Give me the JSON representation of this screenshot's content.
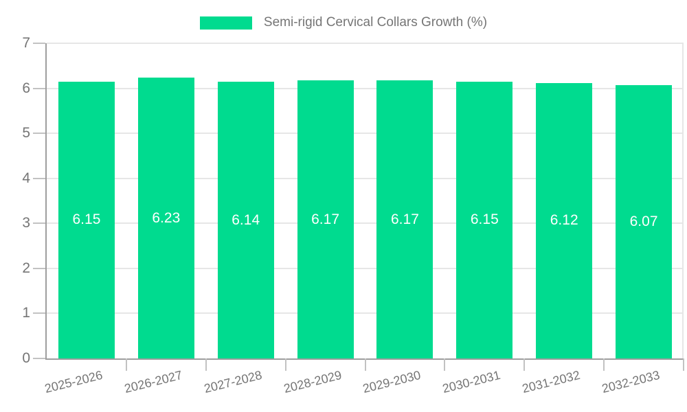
{
  "chart_data": {
    "type": "bar",
    "title": "Semi-rigid Cervical Collars Growth (%)",
    "categories": [
      "2025-2026",
      "2026-2027",
      "2027-2028",
      "2028-2029",
      "2029-2030",
      "2030-2031",
      "2031-2032",
      "2032-2033"
    ],
    "values": [
      6.15,
      6.23,
      6.14,
      6.17,
      6.17,
      6.15,
      6.12,
      6.07
    ],
    "value_labels": [
      "6.15",
      "6.23",
      "6.14",
      "6.17",
      "6.17",
      "6.15",
      "6.12",
      "6.07"
    ],
    "xlabel": "",
    "ylabel": "",
    "ylim": [
      0,
      7
    ],
    "yticks": [
      0,
      1,
      2,
      3,
      4,
      5,
      6,
      7
    ],
    "ytick_labels": [
      "0",
      "1",
      "2",
      "3",
      "4",
      "5",
      "6",
      "7"
    ],
    "grid": true,
    "legend_position": "top-center",
    "x_label_rotation_deg": -14
  },
  "colors": {
    "bar": "#00db8f",
    "value_label": "#ffffff",
    "grid": "#e6e6e6",
    "axis": "#9e9e9e",
    "tick": "#c2c2c2",
    "text": "#757575",
    "background": "#ffffff"
  }
}
